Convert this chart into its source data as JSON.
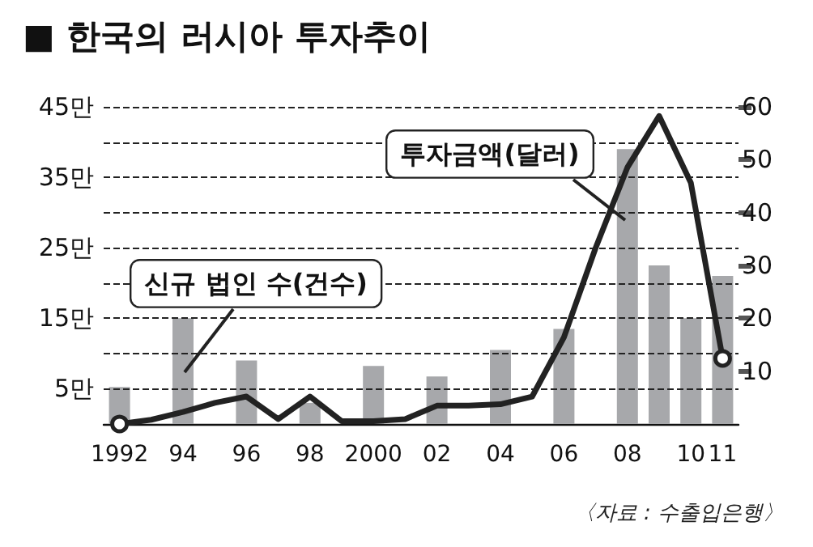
{
  "chart_data": {
    "type": "bar",
    "title": "■ 한국의 러시아 투자추이",
    "categories": [
      "1992",
      null,
      "94",
      null,
      "96",
      null,
      "98",
      null,
      "2000",
      null,
      "02",
      null,
      "04",
      null,
      "06",
      null,
      "08",
      null,
      "10",
      "11"
    ],
    "series": [
      {
        "name": "신규 법인 수(건수)",
        "axis": "y2",
        "color": "#a7a8ab",
        "values": [
          7,
          null,
          20,
          null,
          12,
          null,
          4,
          null,
          11,
          null,
          9,
          null,
          14,
          null,
          18,
          null,
          52,
          30,
          20,
          28
        ]
      },
      {
        "name": "투자금액(달러)",
        "type": "line",
        "color": "#222222",
        "values": [
          0,
          0.6,
          1.7,
          3.0,
          3.9,
          0.7,
          3.9,
          0.4,
          0.4,
          0.7,
          2.6,
          2.6,
          2.8,
          3.9,
          12.3,
          25,
          36.4,
          43.7,
          34.2,
          9.3
        ]
      }
    ],
    "ylim": [
      0,
      45
    ],
    "yticks": [
      {
        "value": 5,
        "label": "5만"
      },
      {
        "value": 10,
        "label": null
      },
      {
        "value": 15,
        "label": "15만"
      },
      {
        "value": 20,
        "label": null
      },
      {
        "value": 25,
        "label": "25만"
      },
      {
        "value": 30,
        "label": null
      },
      {
        "value": 35,
        "label": "35만"
      },
      {
        "value": 40,
        "label": null
      },
      {
        "value": 45,
        "label": "45만"
      }
    ],
    "y2lim": [
      0,
      60
    ],
    "y2ticks": [
      10,
      20,
      30,
      40,
      50,
      60
    ],
    "grid": "y",
    "legend": false,
    "line_style": "solid",
    "annotations": [
      "〈자료 : 수출입은행〉"
    ]
  }
}
